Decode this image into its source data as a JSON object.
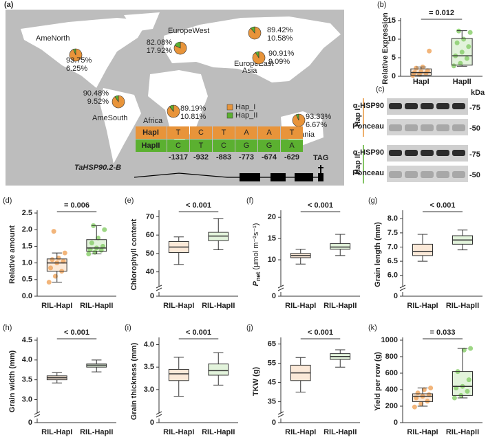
{
  "map": {
    "label": "(a)",
    "legend": [
      {
        "name": "Hap_I",
        "color": "#e8943a"
      },
      {
        "name": "Hap_II",
        "color": "#5bb030"
      }
    ],
    "regions": [
      {
        "name": "AmeNorth",
        "values": [
          93.75,
          6.25
        ],
        "value_labels": [
          "93.75%",
          "6.25%"
        ]
      },
      {
        "name": "EuropeWest",
        "values": [
          82.08,
          17.92
        ],
        "value_labels": [
          "82.08%",
          "17.92%"
        ]
      },
      {
        "name": "EuropeEast",
        "values": [
          89.42,
          10.58
        ],
        "value_labels": [
          "89.42%",
          "10.58%"
        ]
      },
      {
        "name": "Africa",
        "values": [
          89.19,
          10.81
        ],
        "value_labels": [
          "89.19%",
          "10.81%"
        ]
      },
      {
        "name": "Asia",
        "values": [
          90.91,
          9.09
        ],
        "value_labels": [
          "90.91%",
          "9.09%"
        ]
      },
      {
        "name": "AmeSouth",
        "values": [
          90.48,
          9.52
        ],
        "value_labels": [
          "90.48%",
          "9.52%"
        ]
      },
      {
        "name": "Oceania",
        "values": [
          93.33,
          6.67
        ],
        "value_labels": [
          "93.33%",
          "6.67%"
        ]
      }
    ],
    "haplotype_table": {
      "rows": [
        {
          "name": "HapI",
          "bases": [
            "T",
            "C",
            "T",
            "A",
            "A",
            "T"
          ]
        },
        {
          "name": "HapII",
          "bases": [
            "C",
            "T",
            "C",
            "G",
            "G",
            "A"
          ]
        }
      ],
      "positions": [
        "-1317",
        "-932",
        "-883",
        "-773",
        "-674",
        "-629"
      ]
    },
    "gene": "TaHSP90.2-B",
    "stop_codon": "TAG"
  },
  "blot": {
    "label": "(c)",
    "unit": "kDa",
    "groups": [
      {
        "name": "Hap I",
        "rows": [
          {
            "name": "α-HSP90",
            "marker": "-75"
          },
          {
            "name": "Ponceau",
            "marker": "-50"
          }
        ]
      },
      {
        "name": "Hap II",
        "rows": [
          {
            "name": "α-HSP90",
            "marker": "-75"
          },
          {
            "name": "Ponceau",
            "marker": "-50"
          }
        ]
      }
    ]
  },
  "chart_data": [
    {
      "type": "box",
      "panel": "(b)",
      "ylabel": "Relative Expression",
      "annotation": "= 0.012",
      "categories": [
        "HapI",
        "HapII"
      ],
      "ylim": [
        0,
        15
      ],
      "yticks": [
        0,
        5,
        10,
        15
      ],
      "boxes": [
        {
          "color": "#f0a863",
          "min": 0,
          "q1": 0.3,
          "median": 1.0,
          "q3": 2.0,
          "max": 2.5,
          "points": [
            0.2,
            0.5,
            0.8,
            1.0,
            1.2,
            1.5,
            2.2,
            2.5,
            6.8
          ]
        },
        {
          "color": "#8ccf6e",
          "min": 2.7,
          "q1": 3,
          "median": 5.5,
          "q3": 10.2,
          "max": 12.3,
          "points": [
            2.8,
            3.5,
            4.8,
            5.5,
            6.5,
            8,
            9,
            10,
            11.8,
            12.2
          ]
        }
      ]
    },
    {
      "type": "box",
      "panel": "(d)",
      "ylabel": "Relative amount",
      "annotation": "= 0.006",
      "categories": [
        "RIL-HapI",
        "RIL-HapII"
      ],
      "ylim": [
        0,
        2.5
      ],
      "yticks": [
        {
          "value": 0,
          "label": "0.0"
        },
        {
          "value": 0.5,
          "label": "0.5"
        },
        {
          "value": 1,
          "label": "1.0"
        },
        {
          "value": 1.5,
          "label": "1.5"
        },
        {
          "value": 2,
          "label": "2.0"
        },
        {
          "value": 2.5,
          "label": "2.5"
        }
      ],
      "boxes": [
        {
          "color": "#f0a863",
          "min": 0.42,
          "q1": 0.75,
          "median": 1.0,
          "q3": 1.12,
          "max": 1.3,
          "points": [
            0.42,
            0.6,
            0.75,
            0.85,
            1.0,
            1.05,
            1.1,
            1.15,
            1.3,
            1.95
          ]
        },
        {
          "color": "#8ccf6e",
          "min": 1.27,
          "q1": 1.35,
          "median": 1.45,
          "q3": 1.7,
          "max": 2.12,
          "points": [
            1.27,
            1.32,
            1.38,
            1.4,
            1.45,
            1.5,
            1.6,
            1.75,
            2.0,
            2.12
          ]
        }
      ]
    },
    {
      "type": "box",
      "panel": "(e)",
      "ylabel": "Chlorophyll content",
      "annotation": "< 0.001",
      "categories": [
        "RIL-HapI",
        "RIL-HapII"
      ],
      "ylim": [
        35,
        72
      ],
      "yticks": [
        40,
        50,
        60,
        70
      ],
      "ybreak_tick": 0,
      "boxes": [
        {
          "color": "#f0a863",
          "min": 44,
          "q1": 50.5,
          "median": 53.5,
          "q3": 56.5,
          "max": 59
        },
        {
          "color": "#8ccf6e",
          "min": 52,
          "q1": 57,
          "median": 59.5,
          "q3": 61.5,
          "max": 69
        }
      ]
    },
    {
      "type": "box",
      "panel": "(f)",
      "ylabel": {
        "symbol": "P",
        "subscript": "net",
        "unit": "(μmol m⁻²s⁻¹)"
      },
      "annotation": "< 0.001",
      "categories": [
        "RIL-HapI",
        "RIL-HapII"
      ],
      "ylim": [
        5,
        21
      ],
      "yticks": [
        10,
        15,
        20
      ],
      "ybreak_tick": 0,
      "boxes": [
        {
          "color": "#f0a863",
          "min": 9,
          "q1": 10.5,
          "median": 11,
          "q3": 11.5,
          "max": 12.5
        },
        {
          "color": "#8ccf6e",
          "min": 11,
          "q1": 12.5,
          "median": 13,
          "q3": 13.8,
          "max": 16
        }
      ]
    },
    {
      "type": "box",
      "panel": "(g)",
      "ylabel": "Grain length (mm)",
      "annotation": "< 0.001",
      "categories": [
        "RIL-HapI",
        "RIL-HapII"
      ],
      "ylim": [
        5.8,
        8.2
      ],
      "yticks": [
        {
          "value": 6,
          "label": "6.0"
        },
        {
          "value": 6.5,
          "label": "6.5"
        },
        {
          "value": 7,
          "label": "7.0"
        },
        {
          "value": 7.5,
          "label": "7.5"
        },
        {
          "value": 8,
          "label": "8.0"
        }
      ],
      "ybreak_tick": 0,
      "boxes": [
        {
          "color": "#f0a863",
          "min": 6.5,
          "q1": 6.7,
          "median": 6.85,
          "q3": 7.1,
          "max": 7.45
        },
        {
          "color": "#8ccf6e",
          "min": 6.9,
          "q1": 7.1,
          "median": 7.25,
          "q3": 7.4,
          "max": 7.6
        }
      ]
    },
    {
      "type": "box",
      "panel": "(h)",
      "ylabel": "Grain width (mm)",
      "annotation": "< 0.001",
      "categories": [
        "RIL-HapI",
        "RIL-HapII"
      ],
      "ylim": [
        2.8,
        4.5
      ],
      "yticks": [
        {
          "value": 3,
          "label": "3.0"
        },
        {
          "value": 3.5,
          "label": "3.5"
        },
        {
          "value": 4,
          "label": "4.0"
        },
        {
          "value": 4.5,
          "label": "4.5"
        }
      ],
      "ybreak_tick": 0,
      "boxes": [
        {
          "color": "#f0a863",
          "min": 3.42,
          "q1": 3.5,
          "median": 3.55,
          "q3": 3.6,
          "max": 3.68
        },
        {
          "color": "#8ccf6e",
          "min": 3.7,
          "q1": 3.82,
          "median": 3.87,
          "q3": 3.9,
          "max": 4.0
        }
      ]
    },
    {
      "type": "box",
      "panel": "(i)",
      "ylabel": "Grain thickness (mm)",
      "annotation": "< 0.001",
      "categories": [
        "RIL-HapI",
        "RIL-HapII"
      ],
      "ylim": [
        2.6,
        4.1
      ],
      "yticks": [
        {
          "value": 3,
          "label": "3.0"
        },
        {
          "value": 3.5,
          "label": "3.5"
        },
        {
          "value": 4,
          "label": "4.0"
        }
      ],
      "ybreak_tick": 0,
      "boxes": [
        {
          "color": "#f0a863",
          "min": 2.85,
          "q1": 3.2,
          "median": 3.35,
          "q3": 3.45,
          "max": 3.72
        },
        {
          "color": "#8ccf6e",
          "min": 3.1,
          "q1": 3.32,
          "median": 3.42,
          "q3": 3.57,
          "max": 3.82
        }
      ]
    },
    {
      "type": "box",
      "panel": "(j)",
      "ylabel": "TKW (g)",
      "annotation": "< 0.001",
      "categories": [
        "RIL-HapI",
        "RIL-HapII"
      ],
      "ylim": [
        32,
        67
      ],
      "yticks": [
        35,
        45,
        55,
        65
      ],
      "ybreak_tick": 0,
      "boxes": [
        {
          "color": "#f0a863",
          "min": 40,
          "q1": 46,
          "median": 50,
          "q3": 54,
          "max": 58
        },
        {
          "color": "#8ccf6e",
          "min": 53,
          "q1": 57,
          "median": 58.5,
          "q3": 60,
          "max": 62
        }
      ]
    },
    {
      "type": "box",
      "panel": "(k)",
      "ylabel": "Yield per row (g)",
      "annotation": "= 0.033",
      "categories": [
        "RIL-HapI",
        "RIL-HapII"
      ],
      "ylim": [
        0,
        1000
      ],
      "yticks": [
        0,
        200,
        400,
        600,
        800,
        1000
      ],
      "boxes": [
        {
          "color": "#f0a863",
          "min": 200,
          "q1": 255,
          "median": 320,
          "q3": 350,
          "max": 420,
          "points": [
            190,
            230,
            260,
            300,
            320,
            340,
            360,
            400,
            420
          ]
        },
        {
          "color": "#8ccf6e",
          "min": 300,
          "q1": 330,
          "median": 440,
          "q3": 620,
          "max": 900,
          "points": [
            300,
            330,
            380,
            420,
            440,
            520,
            620,
            880,
            900
          ]
        }
      ]
    }
  ]
}
